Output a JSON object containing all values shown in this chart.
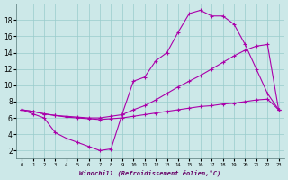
{
  "xlabel": "Windchill (Refroidissement éolien,°C)",
  "xlim": [
    -0.5,
    23.5
  ],
  "ylim": [
    1,
    20
  ],
  "xticks": [
    0,
    1,
    2,
    3,
    4,
    5,
    6,
    7,
    8,
    9,
    10,
    11,
    12,
    13,
    14,
    15,
    16,
    17,
    18,
    19,
    20,
    21,
    22,
    23
  ],
  "yticks": [
    2,
    4,
    6,
    8,
    10,
    12,
    14,
    16,
    18
  ],
  "background_color": "#cce8e8",
  "line_color": "#aa00aa",
  "grid_color": "#99cccc",
  "line1_x": [
    0,
    1,
    2,
    3,
    4,
    5,
    6,
    7,
    8,
    9,
    10,
    11,
    12,
    13,
    14,
    15,
    16,
    17,
    18,
    19,
    20,
    21,
    22,
    23
  ],
  "line1_y": [
    7.0,
    6.5,
    6.0,
    4.2,
    3.5,
    3.0,
    2.5,
    2.0,
    2.2,
    6.5,
    10.5,
    11.0,
    13.0,
    14.0,
    16.5,
    18.8,
    19.2,
    18.5,
    18.5,
    17.5,
    15.0,
    12.0,
    9.0,
    7.0
  ],
  "line2_x": [
    0,
    1,
    2,
    3,
    4,
    5,
    6,
    7,
    8,
    9,
    10,
    11,
    12,
    13,
    14,
    15,
    16,
    17,
    18,
    19,
    20,
    21,
    22,
    23
  ],
  "line2_y": [
    7.0,
    6.8,
    6.5,
    6.3,
    6.2,
    6.1,
    6.0,
    6.0,
    6.2,
    6.4,
    7.0,
    7.5,
    8.2,
    9.0,
    9.8,
    10.5,
    11.2,
    12.0,
    12.8,
    13.6,
    14.3,
    14.8,
    15.0,
    7.0
  ],
  "line3_x": [
    0,
    1,
    2,
    3,
    4,
    5,
    6,
    7,
    8,
    9,
    10,
    11,
    12,
    13,
    14,
    15,
    16,
    17,
    18,
    19,
    20,
    21,
    22,
    23
  ],
  "line3_y": [
    7.0,
    6.8,
    6.5,
    6.3,
    6.1,
    6.0,
    5.9,
    5.8,
    5.9,
    6.0,
    6.2,
    6.4,
    6.6,
    6.8,
    7.0,
    7.2,
    7.4,
    7.5,
    7.7,
    7.8,
    8.0,
    8.2,
    8.3,
    7.0
  ]
}
